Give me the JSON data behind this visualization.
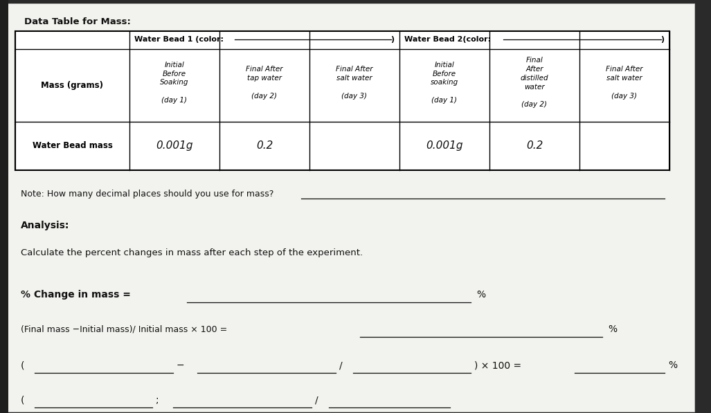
{
  "title": "Data Table for Mass:",
  "bg_color_top": "#2a2a2a",
  "bg_color_bottom": "#1a1a1a",
  "paper_color": "#f0f0ec",
  "paper_shadow": "#cccccc",
  "table_bead1_label": "Water Bead 1 (color:",
  "table_bead2_label": "Water Bead 2(color:",
  "col0_header": "Mass (grams)",
  "col1_header": "Initial\nBefore\nSoaking\n\n(day 1)",
  "col2_header": "Final After\ntap water\n\n(day 2)",
  "col3_header": "Final After\nsalt water\n\n(day 3)",
  "col4_header": "Initial\nBefore\nsoaking\n\n(day 1)",
  "col5_header": "Final\nAfter\ndistilled\nwater\n\n(day 2)",
  "col6_header": "Final After\nsalt water\n\n(day 3)",
  "data_row_label": "Water Bead mass",
  "val1": "0.001g",
  "val2": "0.2",
  "val3": "",
  "val4": "0.001g",
  "val5": "0.2",
  "val6": "",
  "note_text": "Note: How many decimal places should you use for mass?",
  "analysis_label": "Analysis:",
  "calc_text": "Calculate the percent changes in mass after each step of the experiment.",
  "pct_label": "% Change in mass =",
  "formula1_text": "(Final mass −Initial mass)/ Initial mass × 100 =",
  "pct_symbol": "%",
  "x100_text": ") × 100 ="
}
